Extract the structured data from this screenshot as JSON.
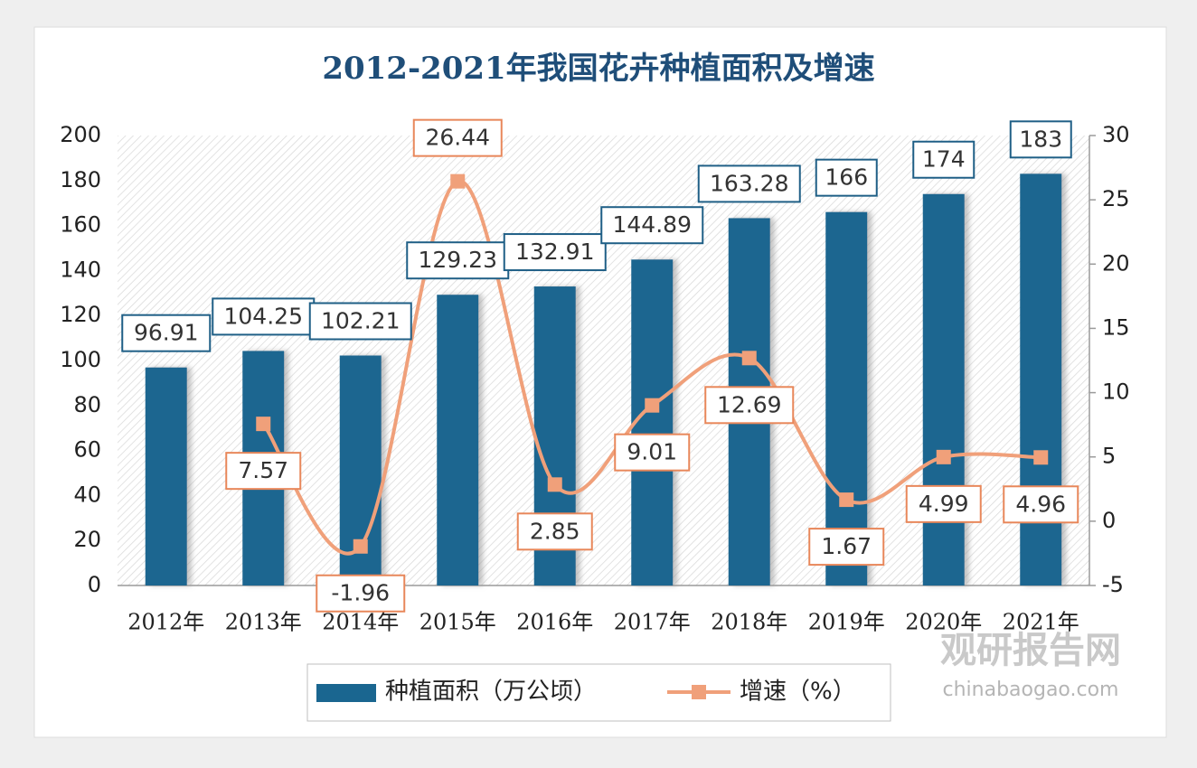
{
  "chart_data": {
    "type": "combo",
    "title": "2012-2021年我国花卉种植面积及增速",
    "categories": [
      "2012年",
      "2013年",
      "2014年",
      "2015年",
      "2016年",
      "2017年",
      "2018年",
      "2019年",
      "2020年",
      "2021年"
    ],
    "series": [
      {
        "name": "种植面积（万公顷）",
        "type": "bar",
        "color": "#1a6690",
        "values": [
          96.91,
          104.25,
          102.21,
          129.23,
          132.91,
          144.89,
          163.28,
          166,
          174,
          183
        ]
      },
      {
        "name": "增速（%）",
        "type": "line",
        "axis": "y2",
        "color": "#f0a07a",
        "values": [
          null,
          7.57,
          -1.96,
          26.44,
          2.85,
          9.01,
          12.69,
          1.67,
          4.99,
          4.96
        ]
      }
    ],
    "ylim": [
      0,
      200
    ],
    "yticks": [
      0,
      20,
      40,
      60,
      80,
      100,
      120,
      140,
      160,
      180,
      200
    ],
    "y2lim": [
      -5,
      30
    ],
    "y2ticks": [
      -5,
      0,
      5,
      10,
      15,
      20,
      25,
      30
    ],
    "legend": "bottom"
  },
  "watermark": {
    "brand": "观研报告网",
    "site": "chinabaogao.com"
  }
}
